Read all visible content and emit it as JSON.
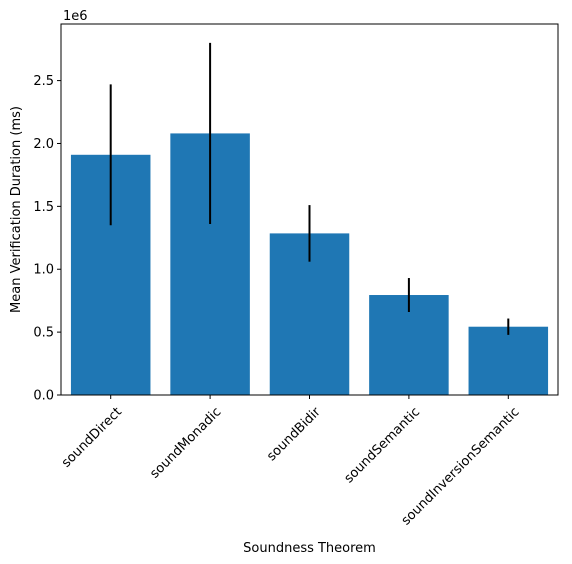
{
  "chart_data": {
    "type": "bar",
    "xlabel": "Soundness Theorem",
    "ylabel": "Mean Verification Duration (ms)",
    "y_scale_label": "1e6",
    "categories": [
      "soundDirect",
      "soundMonadic",
      "soundBidir",
      "soundSemantic",
      "soundInversionSemantic"
    ],
    "values": [
      1910000,
      2080000,
      1285000,
      795000,
      543000
    ],
    "errors": [
      560000,
      720000,
      225000,
      135000,
      65000
    ],
    "ylim": [
      0,
      2950000
    ],
    "yticks": [
      0,
      500000,
      1000000,
      1500000,
      2000000,
      2500000
    ],
    "ytick_labels": [
      "0.0",
      "0.5",
      "1.0",
      "1.5",
      "2.0",
      "2.5"
    ],
    "bar_color": "#1f77b4",
    "error_color": "#000000",
    "grid": false,
    "legend": "none"
  }
}
